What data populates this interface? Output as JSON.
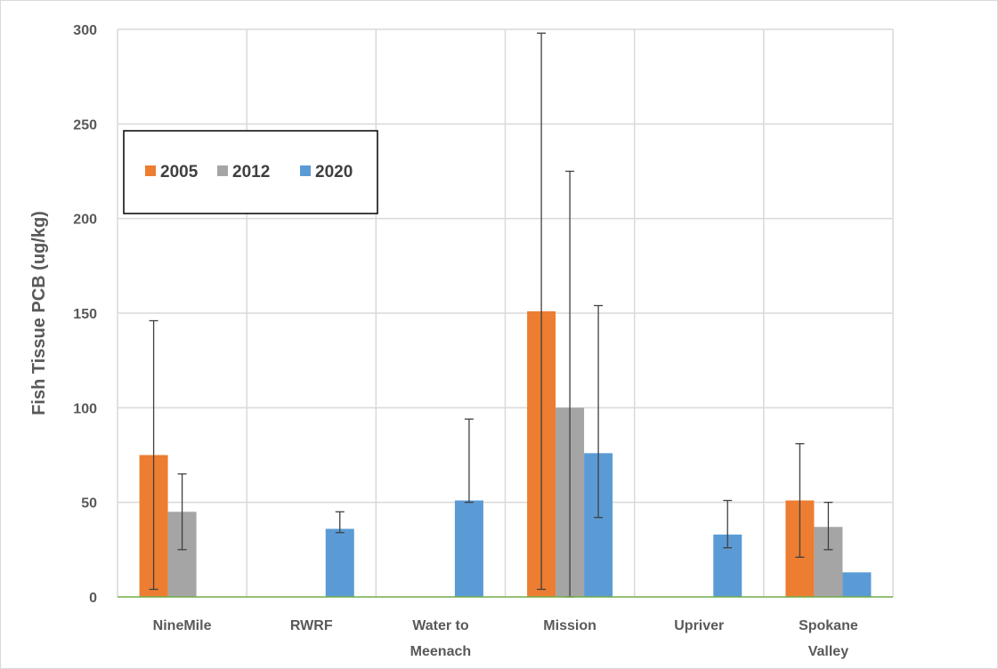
{
  "chart_data": {
    "type": "bar",
    "title": "",
    "xlabel": "",
    "ylabel": "Fish Tissue PCB (ug/kg)",
    "ylim": [
      0,
      300
    ],
    "yticks": [
      0,
      50,
      100,
      150,
      200,
      250,
      300
    ],
    "grid": true,
    "legend_position": "top-left",
    "categories": [
      [
        "NineMile"
      ],
      [
        "RWRF"
      ],
      [
        "Water to",
        "Meenach"
      ],
      [
        "Mission"
      ],
      [
        "Upriver"
      ],
      [
        "Spokane",
        "Valley"
      ]
    ],
    "series": [
      {
        "name": "2005",
        "color": "#ED7D31",
        "values": [
          75,
          null,
          null,
          151,
          null,
          51
        ],
        "error_low": [
          4,
          null,
          null,
          4,
          null,
          21
        ],
        "error_high": [
          146,
          null,
          null,
          298,
          null,
          81
        ]
      },
      {
        "name": "2012",
        "color": "#A5A5A5",
        "values": [
          45,
          null,
          null,
          100,
          null,
          37
        ],
        "error_low": [
          25,
          null,
          null,
          0,
          null,
          25
        ],
        "error_high": [
          65,
          null,
          null,
          225,
          null,
          50
        ]
      },
      {
        "name": "2020",
        "color": "#5B9BD5",
        "values": [
          null,
          36,
          51,
          76,
          33,
          13
        ],
        "error_low": [
          null,
          34,
          50,
          42,
          26,
          null
        ],
        "error_high": [
          null,
          45,
          94,
          154,
          51,
          null
        ]
      }
    ]
  }
}
